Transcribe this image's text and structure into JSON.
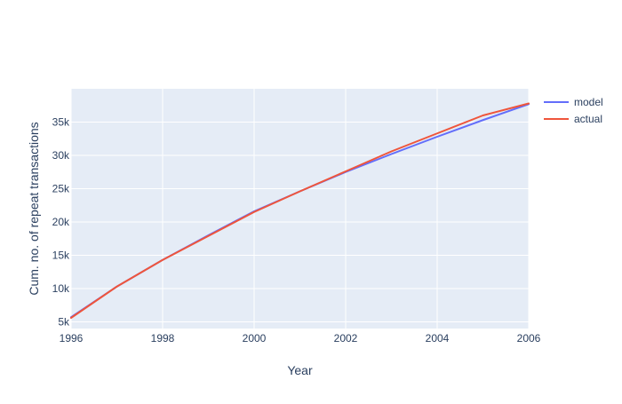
{
  "chart_data": {
    "type": "line",
    "title": "",
    "xlabel": "Year",
    "ylabel": "Cum. no. of repeat transactions",
    "xlim": [
      1996,
      2006
    ],
    "ylim": [
      4000,
      40000
    ],
    "x_ticks": [
      {
        "value": 1996,
        "label": "1996"
      },
      {
        "value": 1998,
        "label": "1998"
      },
      {
        "value": 2000,
        "label": "2000"
      },
      {
        "value": 2002,
        "label": "2002"
      },
      {
        "value": 2004,
        "label": "2004"
      },
      {
        "value": 2006,
        "label": "2006"
      }
    ],
    "y_ticks": [
      {
        "value": 5000,
        "label": "5k"
      },
      {
        "value": 10000,
        "label": "10k"
      },
      {
        "value": 15000,
        "label": "15k"
      },
      {
        "value": 20000,
        "label": "20k"
      },
      {
        "value": 25000,
        "label": "25k"
      },
      {
        "value": 30000,
        "label": "30k"
      },
      {
        "value": 35000,
        "label": "35k"
      }
    ],
    "grid": true,
    "legend_position": "top-right",
    "x": [
      1996,
      1997,
      1998,
      1999,
      2000,
      2001,
      2002,
      2003,
      2004,
      2005,
      2006
    ],
    "series": [
      {
        "name": "model",
        "color": "#636efa",
        "values": [
          5700,
          10300,
          14300,
          18000,
          21600,
          24600,
          27500,
          30200,
          32800,
          35300,
          37700
        ]
      },
      {
        "name": "actual",
        "color": "#ef553b",
        "values": [
          5600,
          10300,
          14300,
          17900,
          21500,
          24600,
          27600,
          30600,
          33300,
          36000,
          37800
        ]
      }
    ],
    "colors": {
      "plot_background": "#e5ecf6",
      "grid": "#ffffff",
      "text": "#2a3f5f"
    }
  }
}
